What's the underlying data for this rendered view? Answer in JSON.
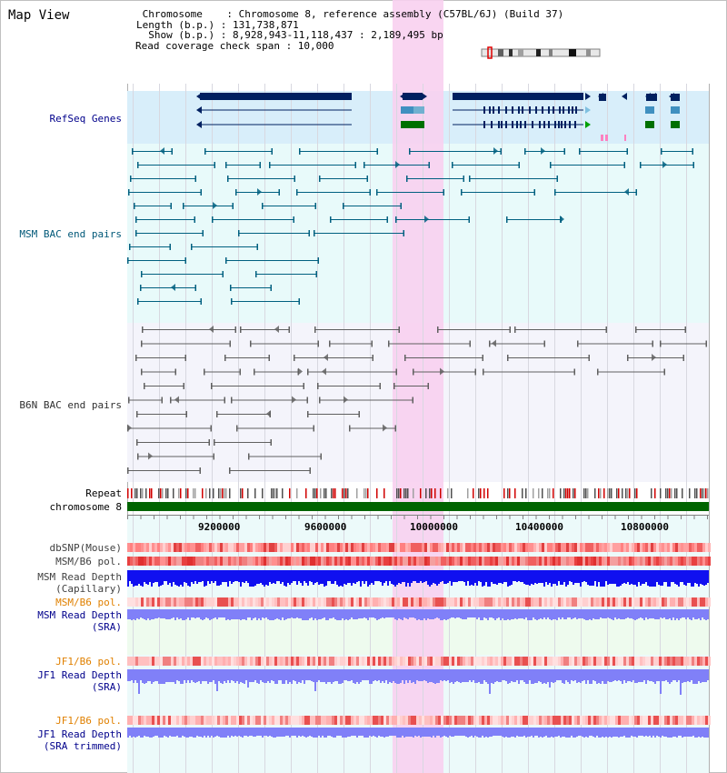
{
  "page": {
    "title": "Map View"
  },
  "info": {
    "chromosome_line": " Chromosome    : Chromosome 8, reference assembly (C57BL/6J) (Build 37)",
    "length_line": "Length (b.p.) : 131,738,871",
    "show_line": "  Show (b.p.) : 8,928,943-11,118,437 : 2,189,495 bp",
    "span_line": "Read coverage check span : 10,000"
  },
  "tracks": {
    "refseq": "RefSeq Genes",
    "msm_bac": "MSM BAC end pairs",
    "b6n_bac": "B6N BAC end pairs",
    "repeat": "Repeat",
    "chromosome": "chromosome 8",
    "dbsnp": "dbSNP(Mouse)",
    "msm_b6_pol_1": "MSM/B6 pol.",
    "msm_read_depth_cap_1": "MSM Read Depth",
    "msm_read_depth_cap_2": "(Capillary)",
    "msm_b6_pol_2": "MSM/B6 pol.",
    "msm_read_depth_sra_1": "MSM Read Depth",
    "msm_read_depth_sra_2": "(SRA)",
    "jf1_b6_pol_1": "JF1/B6 pol.",
    "jf1_read_depth_sra_1": "JF1 Read Depth",
    "jf1_read_depth_sra_2": "(SRA)",
    "jf1_b6_pol_2": "JF1/B6 pol.",
    "jf1_read_depth_trim_1": "JF1 Read Depth",
    "jf1_read_depth_trim_2": "(SRA trimmed)"
  },
  "axis": {
    "ticks": [
      "9200000",
      "9600000",
      "10000000",
      "10400000",
      "10800000"
    ]
  },
  "colors": {
    "refseq_bg": "#d8eefa",
    "msm_bg": "#e8fafa",
    "b6n_bg": "#f4f4fb",
    "highlight": "#f8d0f0",
    "chromosome_bar": "#006400",
    "gene_dark": "#002060",
    "gene_blue": "#4090c0",
    "gene_green": "#007000",
    "msm_line": "#006080",
    "b6n_line": "#606060",
    "label_navy": "#00008b",
    "label_teal": "#005878",
    "label_gray": "#303030",
    "label_orange": "#e08000",
    "depth_blue": "#1010f0",
    "depth_light": "#8080f8"
  }
}
